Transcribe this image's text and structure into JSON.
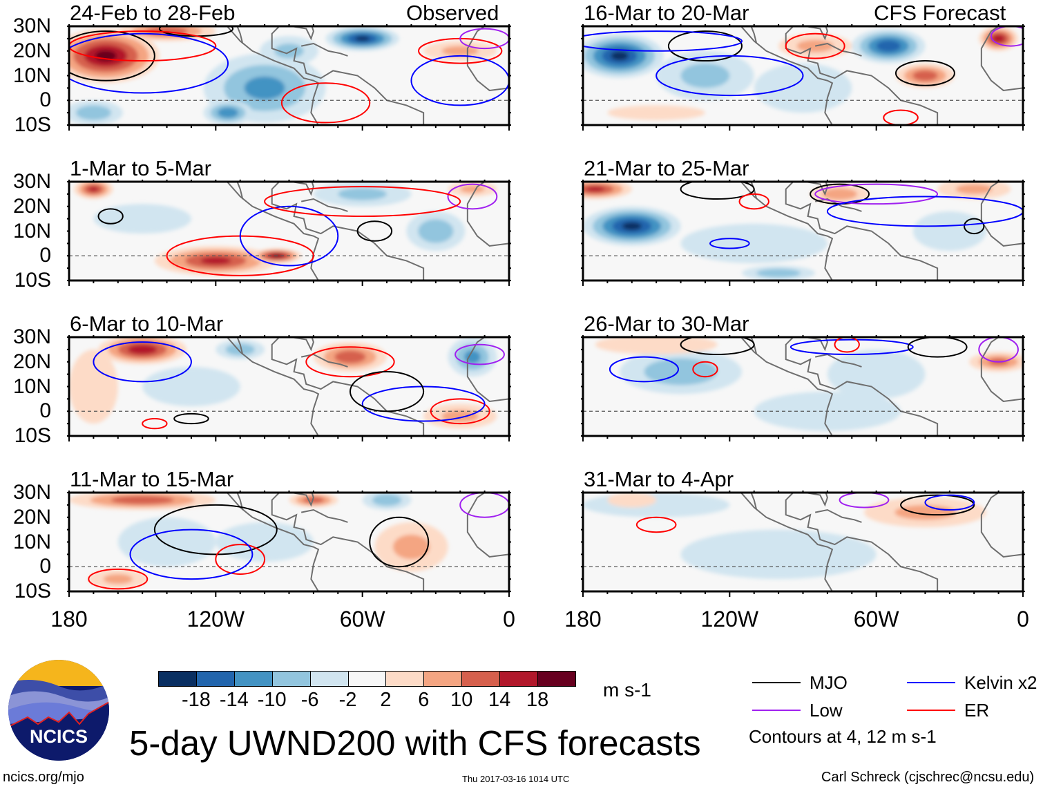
{
  "figure": {
    "title": "5-day UWND200 with CFS forecasts",
    "left_header": "Observed",
    "right_header": "CFS Forecast",
    "units": "m s-1",
    "footer_left": "ncics.org/mjo",
    "footer_center": "Thu 2017-03-16 1014 UTC",
    "footer_right": "Carl Schreck (cjschrec@ncsu.edu)",
    "logo_text": "NCICS"
  },
  "axes": {
    "lat_labels": [
      "30N",
      "20N",
      "10N",
      "0",
      "10S"
    ],
    "lat_values": [
      30,
      20,
      10,
      0,
      -10
    ],
    "lon_labels": [
      "180",
      "120W",
      "60W",
      "0"
    ],
    "lon_values": [
      -180,
      -120,
      -60,
      0
    ]
  },
  "colorbar": {
    "labels": [
      "-18",
      "-14",
      "-10",
      "-6",
      "-2",
      "2",
      "6",
      "10",
      "14",
      "18"
    ],
    "colors": [
      "#0a2f62",
      "#2265ad",
      "#4393c3",
      "#92c5de",
      "#d1e5f0",
      "#f7f7f7",
      "#fddbc7",
      "#f4a582",
      "#d6604d",
      "#b2182b",
      "#67001f"
    ]
  },
  "legend": {
    "items": [
      {
        "label": "MJO",
        "color": "#000000"
      },
      {
        "label": "Kelvin x2",
        "color": "#0000ff"
      },
      {
        "label": "Low",
        "color": "#a020f0"
      },
      {
        "label": "ER",
        "color": "#ff0000"
      }
    ],
    "note": "Contours at 4, 12 m s-1"
  },
  "panels": [
    {
      "title": "24-Feb to 28-Feb",
      "blobs": [
        [
          -165,
          18,
          22,
          11,
          20
        ],
        [
          -140,
          28,
          20,
          4,
          14
        ],
        [
          -100,
          5,
          25,
          14,
          -12
        ],
        [
          -60,
          25,
          15,
          5,
          -20
        ],
        [
          -170,
          -5,
          12,
          5,
          -10
        ],
        [
          -90,
          20,
          12,
          6,
          -8
        ],
        [
          -20,
          20,
          15,
          4,
          8
        ],
        [
          -115,
          -5,
          10,
          5,
          -14
        ],
        [
          -40,
          0,
          20,
          8,
          2
        ]
      ],
      "contours": [
        [
          "mjo",
          -165,
          18,
          20,
          10
        ],
        [
          "mjo",
          -128,
          29,
          15,
          3
        ],
        [
          "er",
          -75,
          -1,
          18,
          8
        ],
        [
          "er",
          -20,
          20,
          17,
          5
        ],
        [
          "er",
          -150,
          22,
          30,
          6
        ],
        [
          "kelvin",
          -150,
          15,
          35,
          12
        ],
        [
          "kelvin",
          -20,
          8,
          20,
          10
        ],
        [
          "low",
          -10,
          25,
          10,
          4
        ]
      ]
    },
    {
      "title": "16-Mar to 20-Mar",
      "blobs": [
        [
          -165,
          18,
          18,
          9,
          -20
        ],
        [
          -55,
          22,
          15,
          7,
          -18
        ],
        [
          -40,
          10,
          12,
          5,
          14
        ],
        [
          -10,
          25,
          8,
          5,
          18
        ],
        [
          -85,
          22,
          15,
          5,
          8
        ],
        [
          -130,
          10,
          20,
          10,
          -8
        ],
        [
          -90,
          5,
          20,
          10,
          -6
        ],
        [
          -150,
          -5,
          20,
          3,
          4
        ]
      ],
      "contours": [
        [
          "mjo",
          -40,
          11,
          12,
          5
        ],
        [
          "mjo",
          -130,
          22,
          15,
          6
        ],
        [
          "kelvin",
          -120,
          10,
          30,
          8
        ],
        [
          "kelvin",
          -150,
          24,
          35,
          4
        ],
        [
          "er",
          -85,
          22,
          12,
          5
        ],
        [
          "er",
          -50,
          -7,
          7,
          3
        ],
        [
          "low",
          -5,
          26,
          8,
          4
        ]
      ]
    },
    {
      "title": "1-Mar to 5-Mar",
      "blobs": [
        [
          -170,
          27,
          8,
          4,
          16
        ],
        [
          -120,
          -2,
          25,
          6,
          16
        ],
        [
          -95,
          0,
          10,
          3,
          20
        ],
        [
          -150,
          15,
          20,
          6,
          -6
        ],
        [
          -60,
          25,
          20,
          5,
          -8
        ],
        [
          -30,
          10,
          12,
          8,
          -10
        ],
        [
          -15,
          27,
          10,
          3,
          8
        ]
      ],
      "contours": [
        [
          "er",
          -110,
          0,
          30,
          8
        ],
        [
          "kelvin",
          -90,
          8,
          20,
          12
        ],
        [
          "mjo",
          -55,
          10,
          7,
          4
        ],
        [
          "mjo",
          -163,
          16,
          5,
          3
        ],
        [
          "low",
          -15,
          24,
          10,
          5
        ],
        [
          "er",
          -60,
          22,
          40,
          6
        ]
      ]
    },
    {
      "title": "21-Mar to 25-Mar",
      "blobs": [
        [
          -160,
          12,
          20,
          8,
          -20
        ],
        [
          -175,
          27,
          15,
          4,
          16
        ],
        [
          -75,
          25,
          12,
          4,
          10
        ],
        [
          -110,
          5,
          30,
          8,
          -6
        ],
        [
          -100,
          -7,
          15,
          3,
          -10
        ],
        [
          -30,
          10,
          15,
          8,
          -4
        ],
        [
          -20,
          27,
          15,
          4,
          8
        ]
      ],
      "contours": [
        [
          "mjo",
          -75,
          25,
          12,
          4
        ],
        [
          "mjo",
          -125,
          27,
          15,
          4
        ],
        [
          "mjo",
          -20,
          12,
          4,
          3
        ],
        [
          "low",
          -60,
          25,
          25,
          4
        ],
        [
          "kelvin",
          -40,
          18,
          40,
          6
        ],
        [
          "kelvin",
          -120,
          5,
          8,
          2
        ],
        [
          "er",
          -110,
          22,
          6,
          3
        ]
      ]
    },
    {
      "title": "6-Mar to 10-Mar",
      "blobs": [
        [
          -150,
          25,
          18,
          6,
          18
        ],
        [
          -65,
          22,
          15,
          6,
          14
        ],
        [
          -170,
          10,
          10,
          15,
          6
        ],
        [
          -15,
          22,
          10,
          8,
          -12
        ],
        [
          -20,
          -2,
          15,
          5,
          8
        ],
        [
          -110,
          25,
          10,
          4,
          -10
        ],
        [
          -130,
          10,
          20,
          8,
          -4
        ]
      ],
      "contours": [
        [
          "er",
          -65,
          20,
          18,
          6
        ],
        [
          "er",
          -20,
          0,
          12,
          5
        ],
        [
          "er",
          -145,
          -5,
          5,
          2
        ],
        [
          "kelvin",
          -150,
          20,
          20,
          8
        ],
        [
          "kelvin",
          -35,
          3,
          25,
          7
        ],
        [
          "mjo",
          -50,
          8,
          15,
          8
        ],
        [
          "mjo",
          -130,
          -3,
          7,
          2
        ],
        [
          "low",
          -12,
          23,
          10,
          4
        ]
      ]
    },
    {
      "title": "26-Mar to 30-Mar",
      "blobs": [
        [
          -140,
          16,
          25,
          9,
          -10
        ],
        [
          -10,
          20,
          12,
          4,
          12
        ],
        [
          -150,
          27,
          25,
          4,
          6
        ],
        [
          -80,
          0,
          30,
          8,
          -6
        ],
        [
          -60,
          15,
          20,
          10,
          -4
        ]
      ],
      "contours": [
        [
          "kelvin",
          -155,
          17,
          14,
          5
        ],
        [
          "kelvin",
          -70,
          26,
          25,
          3
        ],
        [
          "er",
          -130,
          17,
          5,
          3
        ],
        [
          "er",
          -72,
          27,
          5,
          3
        ],
        [
          "mjo",
          -125,
          27,
          15,
          4
        ],
        [
          "mjo",
          -35,
          26,
          12,
          4
        ],
        [
          "low",
          -10,
          25,
          8,
          5
        ]
      ]
    },
    {
      "title": "11-Mar to 15-Mar",
      "blobs": [
        [
          -150,
          27,
          30,
          4,
          14
        ],
        [
          -80,
          27,
          10,
          3,
          14
        ],
        [
          -40,
          8,
          15,
          10,
          8
        ],
        [
          -160,
          -5,
          12,
          4,
          8
        ],
        [
          -140,
          10,
          20,
          10,
          -6
        ],
        [
          -100,
          10,
          20,
          8,
          -6
        ],
        [
          -50,
          27,
          10,
          4,
          -10
        ]
      ],
      "contours": [
        [
          "mjo",
          -120,
          15,
          25,
          10
        ],
        [
          "mjo",
          -45,
          10,
          12,
          10
        ],
        [
          "er",
          -160,
          -5,
          12,
          4
        ],
        [
          "er",
          -110,
          3,
          10,
          6
        ],
        [
          "kelvin",
          -130,
          5,
          25,
          10
        ],
        [
          "low",
          -10,
          25,
          10,
          5
        ]
      ]
    },
    {
      "title": "31-Mar to 4-Apr",
      "blobs": [
        [
          -150,
          25,
          30,
          5,
          -6
        ],
        [
          -40,
          22,
          25,
          6,
          8
        ],
        [
          -100,
          5,
          40,
          10,
          -4
        ],
        [
          -160,
          27,
          10,
          3,
          6
        ]
      ],
      "contours": [
        [
          "er",
          -150,
          17,
          8,
          3
        ],
        [
          "mjo",
          -35,
          25,
          15,
          4
        ],
        [
          "low",
          -65,
          27,
          10,
          3
        ],
        [
          "kelvin",
          -30,
          26,
          10,
          3
        ]
      ]
    }
  ]
}
